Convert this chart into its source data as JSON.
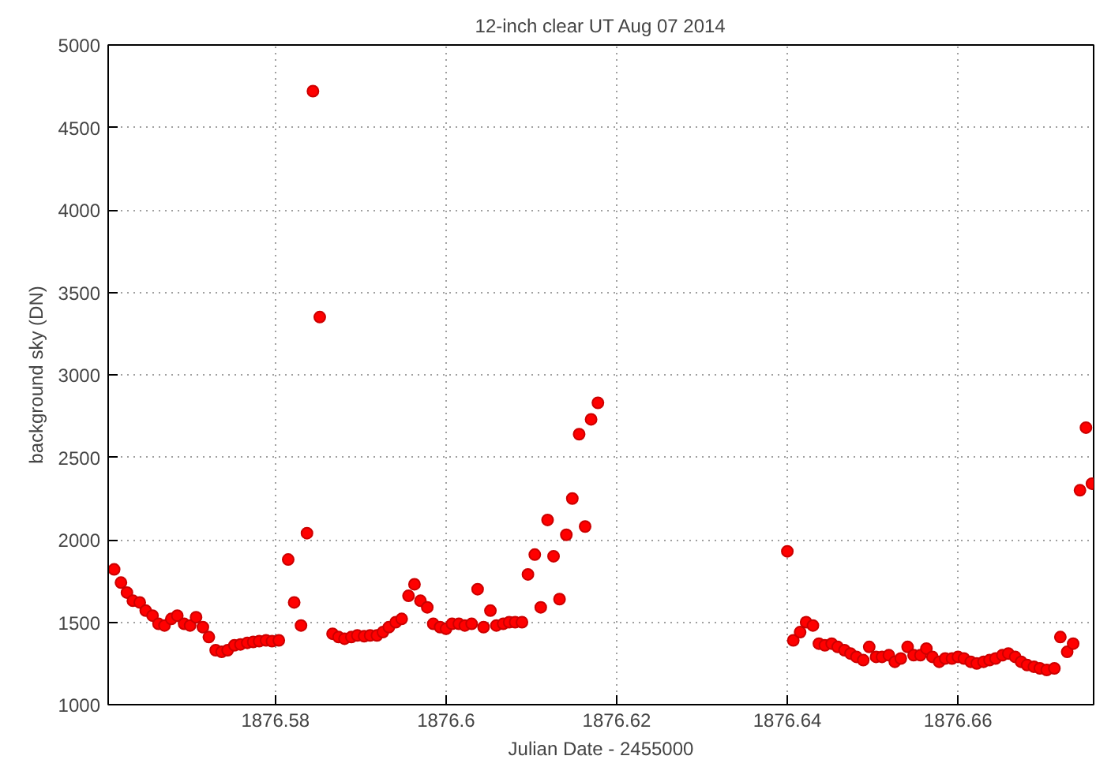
{
  "chart_data": {
    "type": "scatter",
    "title": "12-inch clear UT Aug 07 2014",
    "xlabel": "Julian Date - 2455000",
    "ylabel": "background sky (DN)",
    "x": [
      1876.5611,
      1876.5619,
      1876.5626,
      1876.5633,
      1876.5641,
      1876.5648,
      1876.5656,
      1876.5663,
      1876.567,
      1876.5678,
      1876.5685,
      1876.5693,
      1876.57,
      1876.5707,
      1876.5715,
      1876.5722,
      1876.573,
      1876.5737,
      1876.5744,
      1876.5752,
      1876.5759,
      1876.5767,
      1876.5774,
      1876.5781,
      1876.5789,
      1876.5796,
      1876.5804,
      1876.5815,
      1876.5822,
      1876.583,
      1876.5837,
      1876.5844,
      1876.5852,
      1876.5867,
      1876.5874,
      1876.5881,
      1876.5889,
      1876.5896,
      1876.5904,
      1876.5911,
      1876.5919,
      1876.5926,
      1876.5933,
      1876.5941,
      1876.5948,
      1876.5956,
      1876.5963,
      1876.597,
      1876.5978,
      1876.5985,
      1876.5993,
      1876.6,
      1876.6007,
      1876.6015,
      1876.6022,
      1876.603,
      1876.6037,
      1876.6044,
      1876.6052,
      1876.6059,
      1876.6067,
      1876.6074,
      1876.6081,
      1876.6089,
      1876.6096,
      1876.6104,
      1876.6111,
      1876.6119,
      1876.6126,
      1876.6133,
      1876.6141,
      1876.6148,
      1876.6156,
      1876.6163,
      1876.617,
      1876.6178,
      1876.64,
      1876.6407,
      1876.6415,
      1876.6422,
      1876.643,
      1876.6437,
      1876.6444,
      1876.6452,
      1876.6459,
      1876.6467,
      1876.6474,
      1876.6481,
      1876.6489,
      1876.6496,
      1876.6504,
      1876.6511,
      1876.6519,
      1876.6526,
      1876.6533,
      1876.6541,
      1876.6548,
      1876.6556,
      1876.6563,
      1876.657,
      1876.6578,
      1876.6585,
      1876.6593,
      1876.66,
      1876.6607,
      1876.6615,
      1876.6622,
      1876.663,
      1876.6637,
      1876.6644,
      1876.6652,
      1876.6659,
      1876.6667,
      1876.6674,
      1876.6681,
      1876.6689,
      1876.6696,
      1876.6704,
      1876.6713,
      1876.672,
      1876.6728,
      1876.6735,
      1876.6743,
      1876.675,
      1876.6757
    ],
    "series": [
      {
        "color": "#ff0000",
        "values": [
          1820,
          1740,
          1680,
          1630,
          1620,
          1570,
          1540,
          1490,
          1480,
          1520,
          1540,
          1490,
          1480,
          1530,
          1470,
          1410,
          1330,
          1320,
          1330,
          1360,
          1365,
          1375,
          1380,
          1385,
          1390,
          1385,
          1390,
          1880,
          1620,
          1480,
          2040,
          4720,
          3350,
          1430,
          1410,
          1400,
          1410,
          1420,
          1415,
          1420,
          1420,
          1440,
          1470,
          1500,
          1520,
          1660,
          1730,
          1630,
          1590,
          1490,
          1470,
          1460,
          1490,
          1490,
          1480,
          1490,
          1700,
          1470,
          1570,
          1480,
          1490,
          1500,
          1500,
          1500,
          1790,
          1910,
          1590,
          2120,
          1900,
          1640,
          2030,
          2250,
          2640,
          2080,
          2730,
          2830,
          1930,
          1390,
          1440,
          1500,
          1480,
          1370,
          1360,
          1370,
          1350,
          1330,
          1310,
          1290,
          1270,
          1350,
          1290,
          1290,
          1300,
          1260,
          1280,
          1350,
          1300,
          1300,
          1340,
          1290,
          1260,
          1280,
          1280,
          1290,
          1280,
          1260,
          1250,
          1260,
          1270,
          1280,
          1300,
          1310,
          1290,
          1260,
          1240,
          1230,
          1220,
          1210,
          1220,
          1410,
          1320,
          1370,
          2300,
          2680,
          2340
        ]
      }
    ],
    "xlim": [
      1876.5604,
      1876.6759
    ],
    "xticks": [
      1876.58,
      1876.6,
      1876.62,
      1876.64,
      1876.66
    ],
    "ylim": [
      1000,
      5000
    ],
    "yticks": [
      1000,
      1500,
      2000,
      2500,
      3000,
      3500,
      4000,
      4500,
      5000
    ],
    "grid": true,
    "marker": "circle"
  }
}
